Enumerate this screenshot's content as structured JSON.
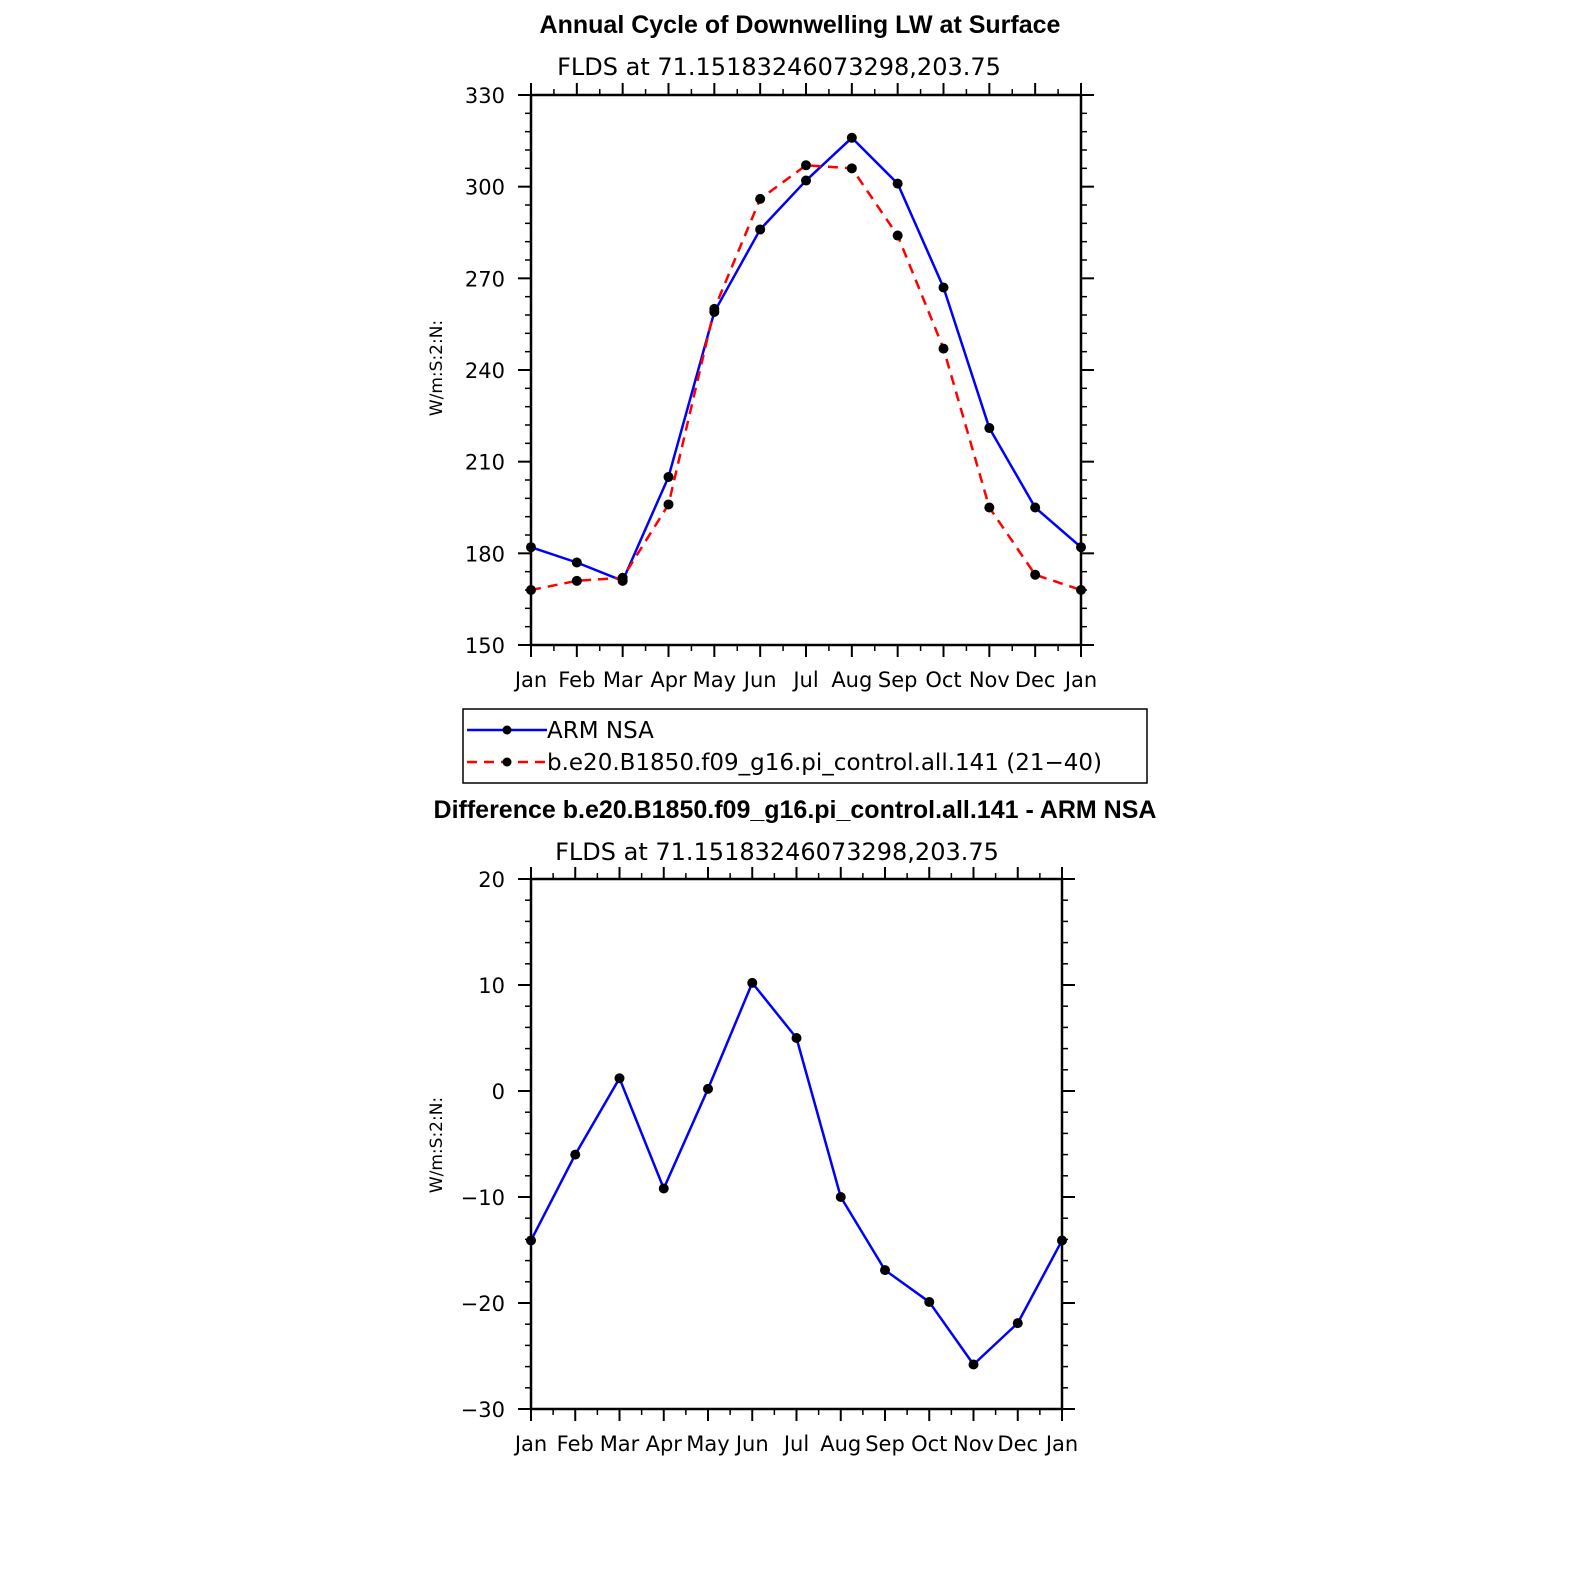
{
  "chart_data": [
    {
      "type": "line",
      "title": "Annual Cycle of Downwelling LW at Surface",
      "subtitle": "FLDS at 71.15183246073298,203.75",
      "xlabel": "",
      "ylabel": "W/m:S:2:N:",
      "categories": [
        "Jan",
        "Feb",
        "Mar",
        "Apr",
        "May",
        "Jun",
        "Jul",
        "Aug",
        "Sep",
        "Oct",
        "Nov",
        "Dec",
        "Jan"
      ],
      "ylim": [
        150,
        330
      ],
      "yticks": [
        150,
        180,
        210,
        240,
        270,
        300,
        330
      ],
      "series": [
        {
          "name": "ARM NSA",
          "color": "#0000ff",
          "dash": "solid",
          "values": [
            182,
            177,
            171,
            205,
            259,
            286,
            302,
            316,
            301,
            267,
            221,
            195,
            182
          ]
        },
        {
          "name": "b.e20.B1850.f09_g16.pi_control.all.141 (21−40)",
          "color": "#ff0000",
          "dash": "dashed",
          "values": [
            168,
            171,
            172,
            196,
            260,
            296,
            307,
            306,
            284,
            247,
            195,
            173,
            168
          ]
        }
      ],
      "legend": "below"
    },
    {
      "type": "line",
      "title": "Difference b.e20.B1850.f09_g16.pi_control.all.141 - ARM NSA",
      "subtitle": "FLDS at 71.15183246073298,203.75",
      "xlabel": "",
      "ylabel": "W/m:S:2:N:",
      "categories": [
        "Jan",
        "Feb",
        "Mar",
        "Apr",
        "May",
        "Jun",
        "Jul",
        "Aug",
        "Sep",
        "Oct",
        "Nov",
        "Dec",
        "Jan"
      ],
      "ylim": [
        -30,
        20
      ],
      "yticks": [
        -30,
        -20,
        -10,
        0,
        10,
        20
      ],
      "series": [
        {
          "name": "Difference",
          "color": "#0000ff",
          "dash": "solid",
          "values": [
            -14.1,
            -6,
            1.2,
            -9.2,
            0.2,
            10.2,
            5,
            -10,
            -16.9,
            -19.9,
            -25.8,
            -21.9,
            -14.1
          ]
        }
      ]
    }
  ]
}
